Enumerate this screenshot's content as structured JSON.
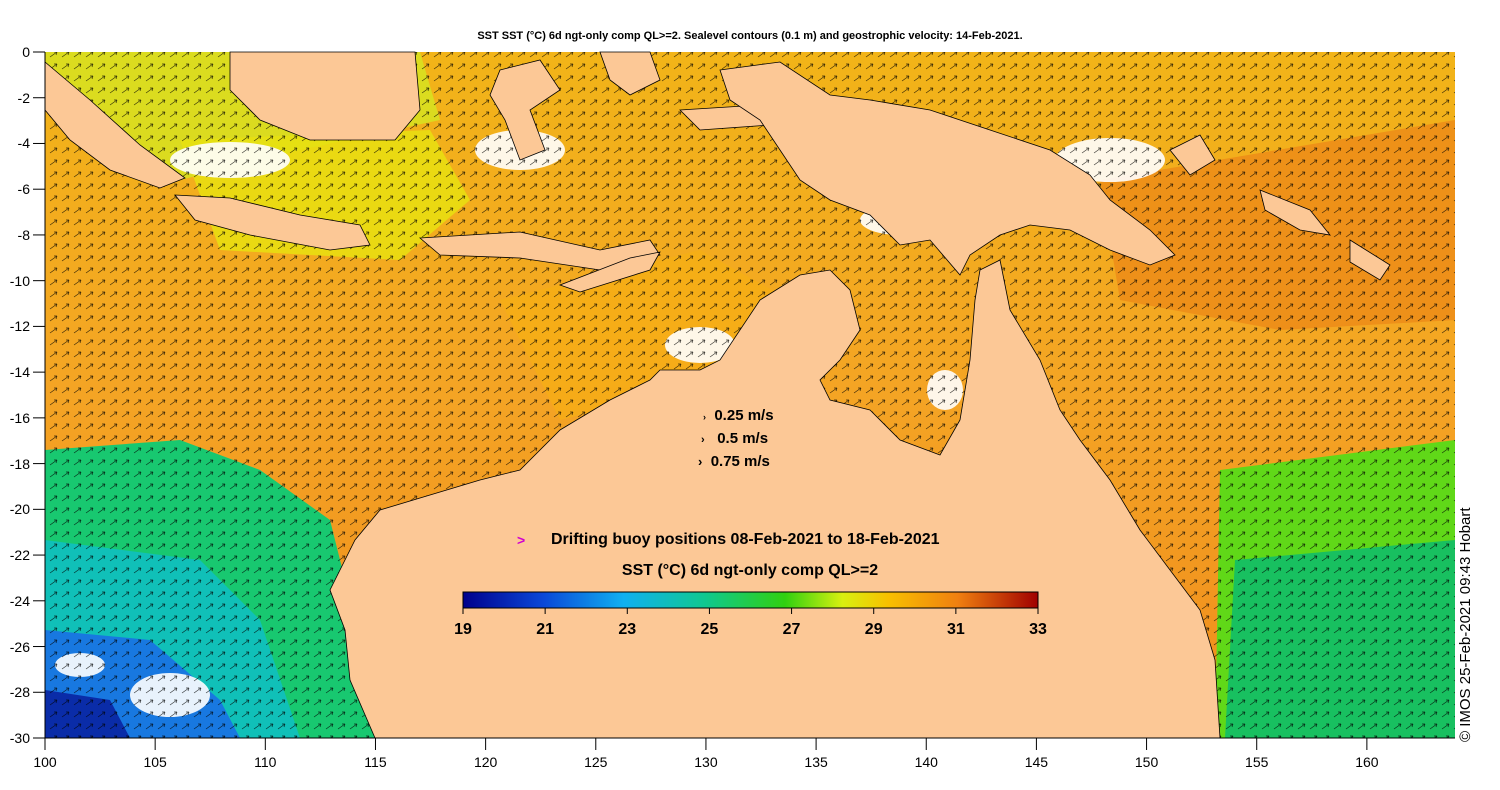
{
  "title": "SST SST (°C) 6d ngt-only comp QL>=2. Sealevel contours (0.1 m) and geostrophic velocity: 14-Feb-2021.",
  "y_ticks": [
    "0",
    "-2",
    "-4",
    "-6",
    "-8",
    "-10",
    "-12",
    "-14",
    "-16",
    "-18",
    "-20",
    "-22",
    "-24",
    "-26",
    "-28",
    "-30"
  ],
  "x_ticks": [
    "100",
    "105",
    "110",
    "115",
    "120",
    "125",
    "130",
    "135",
    "140",
    "145",
    "150",
    "155",
    "160"
  ],
  "velocity_legend": [
    "0.25 m/s",
    "0.5 m/s",
    "0.75 m/s"
  ],
  "buoy_legend": "Drifting buoy positions 08-Feb-2021 to 18-Feb-2021",
  "buoy_symbol": ">",
  "colorbar": {
    "title": "SST (°C) 6d ngt-only comp QL>=2",
    "labels": [
      "19",
      "21",
      "23",
      "25",
      "27",
      "29",
      "31",
      "33"
    ],
    "range": [
      19,
      33
    ]
  },
  "credit": "© IMOS 25-Feb-2021 09:43 Hobart",
  "colors": {
    "land": "#fcc896",
    "warm_sea": "#f4a424",
    "cool_sea": "#18c878",
    "cold_sea": "#1060d8",
    "buoy": "#d000d0"
  },
  "map": {
    "lon_range": [
      100,
      164
    ],
    "lat_range": [
      -30,
      0
    ]
  }
}
